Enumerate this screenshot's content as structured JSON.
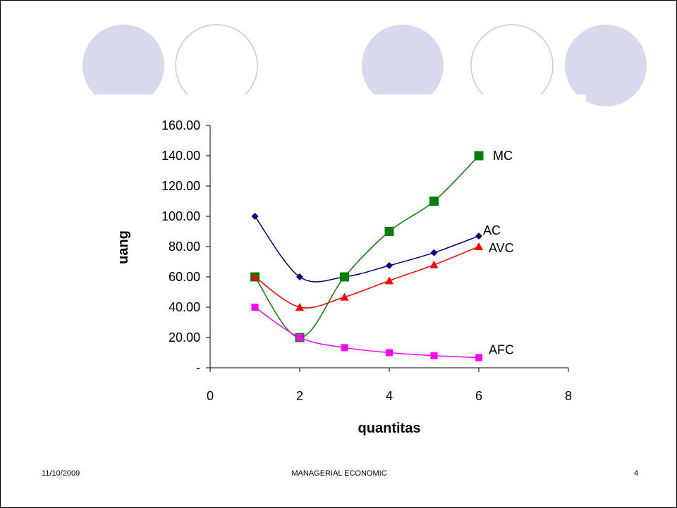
{
  "footer": {
    "date": "11/10/2009",
    "title": "MANAGERIAL ECONOMIC",
    "page_number": "4"
  },
  "colors": {
    "circle_fill": "#d9d9ee",
    "circle_stroke": "#c8c8e0"
  },
  "chart_data": {
    "type": "line",
    "title": "",
    "xlabel": "quantitas",
    "ylabel": "uang",
    "xlim": [
      0,
      8
    ],
    "ylim": [
      0,
      160
    ],
    "x_ticks": [
      0,
      2,
      4,
      6,
      8
    ],
    "x_tick_labels": [
      "0",
      "2",
      "4",
      "6",
      "8"
    ],
    "y_ticks": [
      0,
      20,
      40,
      60,
      80,
      100,
      120,
      140,
      160
    ],
    "y_tick_labels": [
      "-",
      "20.00",
      "40.00",
      "60.00",
      "80.00",
      "100.00",
      "120.00",
      "140.00",
      "160.00"
    ],
    "grid": false,
    "series": [
      {
        "name": "AC",
        "color": "#000080",
        "marker": "diamond",
        "x": [
          1,
          2,
          3,
          4,
          5,
          6
        ],
        "values": [
          100,
          60,
          60,
          67.5,
          76,
          87
        ]
      },
      {
        "name": "MC",
        "color": "#008000",
        "marker": "square",
        "x": [
          1,
          2,
          3,
          4,
          5,
          6
        ],
        "values": [
          60,
          20,
          60,
          90,
          110,
          140
        ]
      },
      {
        "name": "AVC",
        "color": "#ff0000",
        "marker": "triangle",
        "x": [
          1,
          2,
          3,
          4,
          5,
          6
        ],
        "values": [
          60,
          40,
          46.7,
          57.5,
          68,
          80
        ]
      },
      {
        "name": "AFC",
        "color": "#ff00ff",
        "marker": "square",
        "x": [
          1,
          2,
          3,
          4,
          5,
          6
        ],
        "values": [
          40,
          20,
          13.3,
          10,
          8,
          6.7
        ]
      }
    ]
  }
}
